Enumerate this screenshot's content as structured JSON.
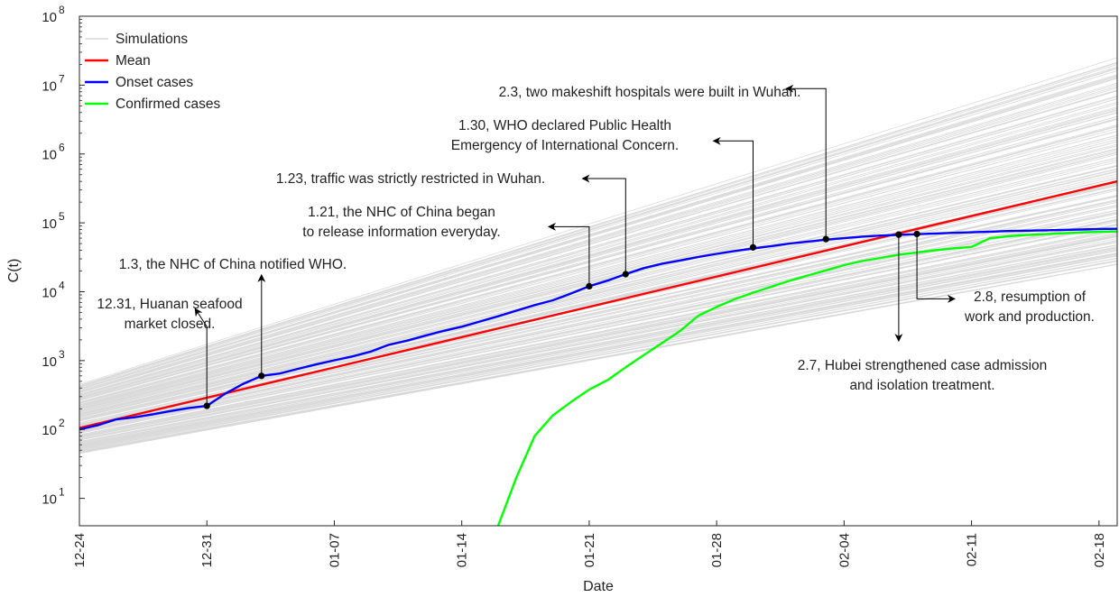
{
  "chart_data": {
    "type": "line",
    "xlabel": "Date",
    "ylabel": "C(t)",
    "yscale": "log",
    "ylim": [
      4,
      100000000
    ],
    "x_range": [
      "2019-12-24",
      "2020-02-19"
    ],
    "x_ticks": [
      "12-24",
      "12-31",
      "01-07",
      "01-14",
      "01-21",
      "01-28",
      "02-04",
      "02-11",
      "02-18"
    ],
    "y_ticks": [
      {
        "value": 10,
        "exp": "1"
      },
      {
        "value": 100,
        "exp": "2"
      },
      {
        "value": 1000,
        "exp": "3"
      },
      {
        "value": 10000,
        "exp": "4"
      },
      {
        "value": 100000,
        "exp": "5"
      },
      {
        "value": 1000000,
        "exp": "6"
      },
      {
        "value": 10000000,
        "exp": "7"
      },
      {
        "value": 100000000,
        "exp": "8"
      }
    ],
    "y_tick_base": "10",
    "legend_position": "top-left",
    "legend": [
      {
        "name": "Simulations",
        "color": "#d9d9d9"
      },
      {
        "name": "Mean",
        "color": "#ff0000"
      },
      {
        "name": "Onset cases",
        "color": "#0000ff"
      },
      {
        "name": "Confirmed cases",
        "color": "#00ff00"
      }
    ],
    "simulations": {
      "color": "#d9d9d9",
      "band_start": [
        "2019-12-24",
        45,
        450
      ],
      "band_end": [
        "2020-02-19",
        25000,
        25000000
      ]
    },
    "series": [
      {
        "name": "Mean",
        "color": "#ff0000",
        "points": [
          [
            "2019-12-24",
            105
          ],
          [
            "2020-02-19",
            400000
          ]
        ]
      },
      {
        "name": "Onset cases",
        "color": "#0000ff",
        "points": [
          [
            "2019-12-24",
            100
          ],
          [
            "2019-12-25",
            115
          ],
          [
            "2019-12-26",
            140
          ],
          [
            "2019-12-27",
            150
          ],
          [
            "2019-12-28",
            165
          ],
          [
            "2019-12-29",
            185
          ],
          [
            "2019-12-30",
            205
          ],
          [
            "2019-12-31",
            220
          ],
          [
            "2020-01-01",
            330
          ],
          [
            "2020-01-02",
            460
          ],
          [
            "2020-01-03",
            600
          ],
          [
            "2020-01-04",
            650
          ],
          [
            "2020-01-05",
            760
          ],
          [
            "2020-01-06",
            880
          ],
          [
            "2020-01-07",
            1010
          ],
          [
            "2020-01-08",
            1150
          ],
          [
            "2020-01-09",
            1350
          ],
          [
            "2020-01-10",
            1700
          ],
          [
            "2020-01-11",
            1950
          ],
          [
            "2020-01-12",
            2300
          ],
          [
            "2020-01-13",
            2700
          ],
          [
            "2020-01-14",
            3100
          ],
          [
            "2020-01-15",
            3700
          ],
          [
            "2020-01-16",
            4400
          ],
          [
            "2020-01-17",
            5300
          ],
          [
            "2020-01-18",
            6400
          ],
          [
            "2020-01-19",
            7500
          ],
          [
            "2020-01-20",
            9400
          ],
          [
            "2020-01-21",
            12000
          ],
          [
            "2020-01-22",
            14500
          ],
          [
            "2020-01-23",
            18000
          ],
          [
            "2020-01-24",
            22000
          ],
          [
            "2020-01-25",
            25500
          ],
          [
            "2020-01-26",
            28500
          ],
          [
            "2020-01-27",
            32000
          ],
          [
            "2020-01-28",
            35500
          ],
          [
            "2020-01-29",
            39000
          ],
          [
            "2020-01-30",
            42500
          ],
          [
            "2020-01-31",
            46000
          ],
          [
            "2020-02-01",
            50000
          ],
          [
            "2020-02-02",
            53500
          ],
          [
            "2020-02-03",
            57000
          ],
          [
            "2020-02-04",
            60000
          ],
          [
            "2020-02-05",
            63000
          ],
          [
            "2020-02-06",
            65500
          ],
          [
            "2020-02-07",
            67000
          ],
          [
            "2020-02-08",
            68500
          ],
          [
            "2020-02-09",
            70000
          ],
          [
            "2020-02-10",
            71500
          ],
          [
            "2020-02-11",
            73000
          ],
          [
            "2020-02-12",
            74500
          ],
          [
            "2020-02-13",
            76000
          ],
          [
            "2020-02-14",
            77000
          ],
          [
            "2020-02-15",
            78000
          ],
          [
            "2020-02-16",
            79000
          ],
          [
            "2020-02-17",
            80000
          ],
          [
            "2020-02-18",
            81500
          ],
          [
            "2020-02-19",
            82000
          ]
        ]
      },
      {
        "name": "Confirmed cases",
        "color": "#00ff00",
        "points": [
          [
            "2020-01-16",
            4
          ],
          [
            "2020-01-17",
            20
          ],
          [
            "2020-01-18",
            80
          ],
          [
            "2020-01-19",
            160
          ],
          [
            "2020-01-20",
            250
          ],
          [
            "2020-01-21",
            380
          ],
          [
            "2020-01-22",
            520
          ],
          [
            "2020-01-23",
            800
          ],
          [
            "2020-01-24",
            1200
          ],
          [
            "2020-01-25",
            1800
          ],
          [
            "2020-01-26",
            2700
          ],
          [
            "2020-01-27",
            4500
          ],
          [
            "2020-01-28",
            6000
          ],
          [
            "2020-01-29",
            7800
          ],
          [
            "2020-01-30",
            9700
          ],
          [
            "2020-01-31",
            11800
          ],
          [
            "2020-02-01",
            14400
          ],
          [
            "2020-02-02",
            17200
          ],
          [
            "2020-02-03",
            20400
          ],
          [
            "2020-02-04",
            24300
          ],
          [
            "2020-02-05",
            27900
          ],
          [
            "2020-02-06",
            31000
          ],
          [
            "2020-02-07",
            34500
          ],
          [
            "2020-02-08",
            37200
          ],
          [
            "2020-02-09",
            40000
          ],
          [
            "2020-02-10",
            42600
          ],
          [
            "2020-02-11",
            44700
          ],
          [
            "2020-02-12",
            59800
          ],
          [
            "2020-02-13",
            63900
          ],
          [
            "2020-02-14",
            66600
          ],
          [
            "2020-02-15",
            68500
          ],
          [
            "2020-02-16",
            70500
          ],
          [
            "2020-02-17",
            72400
          ],
          [
            "2020-02-18",
            74200
          ],
          [
            "2020-02-19",
            75000
          ]
        ]
      }
    ],
    "annotations": [
      {
        "lines": [
          "12.31, Huanan seafood",
          "market closed."
        ],
        "point": [
          "2019-12-31",
          220
        ]
      },
      {
        "lines": [
          "1.3, the NHC of China notified WHO."
        ],
        "point": [
          "2020-01-03",
          600
        ]
      },
      {
        "lines": [
          "1.21, the NHC of China began",
          "to release information everyday."
        ],
        "point": [
          "2020-01-21",
          12000
        ]
      },
      {
        "lines": [
          "1.23, traffic was strictly restricted in Wuhan."
        ],
        "point": [
          "2020-01-23",
          18000
        ]
      },
      {
        "lines": [
          "1.30, WHO declared Public Health",
          "Emergency of International Concern."
        ],
        "point": [
          "2020-01-30",
          44000
        ]
      },
      {
        "lines": [
          "2.3, two makeshift hospitals were built in Wuhan."
        ],
        "point": [
          "2020-02-03",
          58000
        ]
      },
      {
        "lines": [
          "2.7, Hubei strengthened case admission",
          "and isolation treatment."
        ],
        "point": [
          "2020-02-07",
          67500
        ]
      },
      {
        "lines": [
          "2.8, resumption of",
          "work and production."
        ],
        "point": [
          "2020-02-08",
          69000
        ]
      }
    ]
  }
}
